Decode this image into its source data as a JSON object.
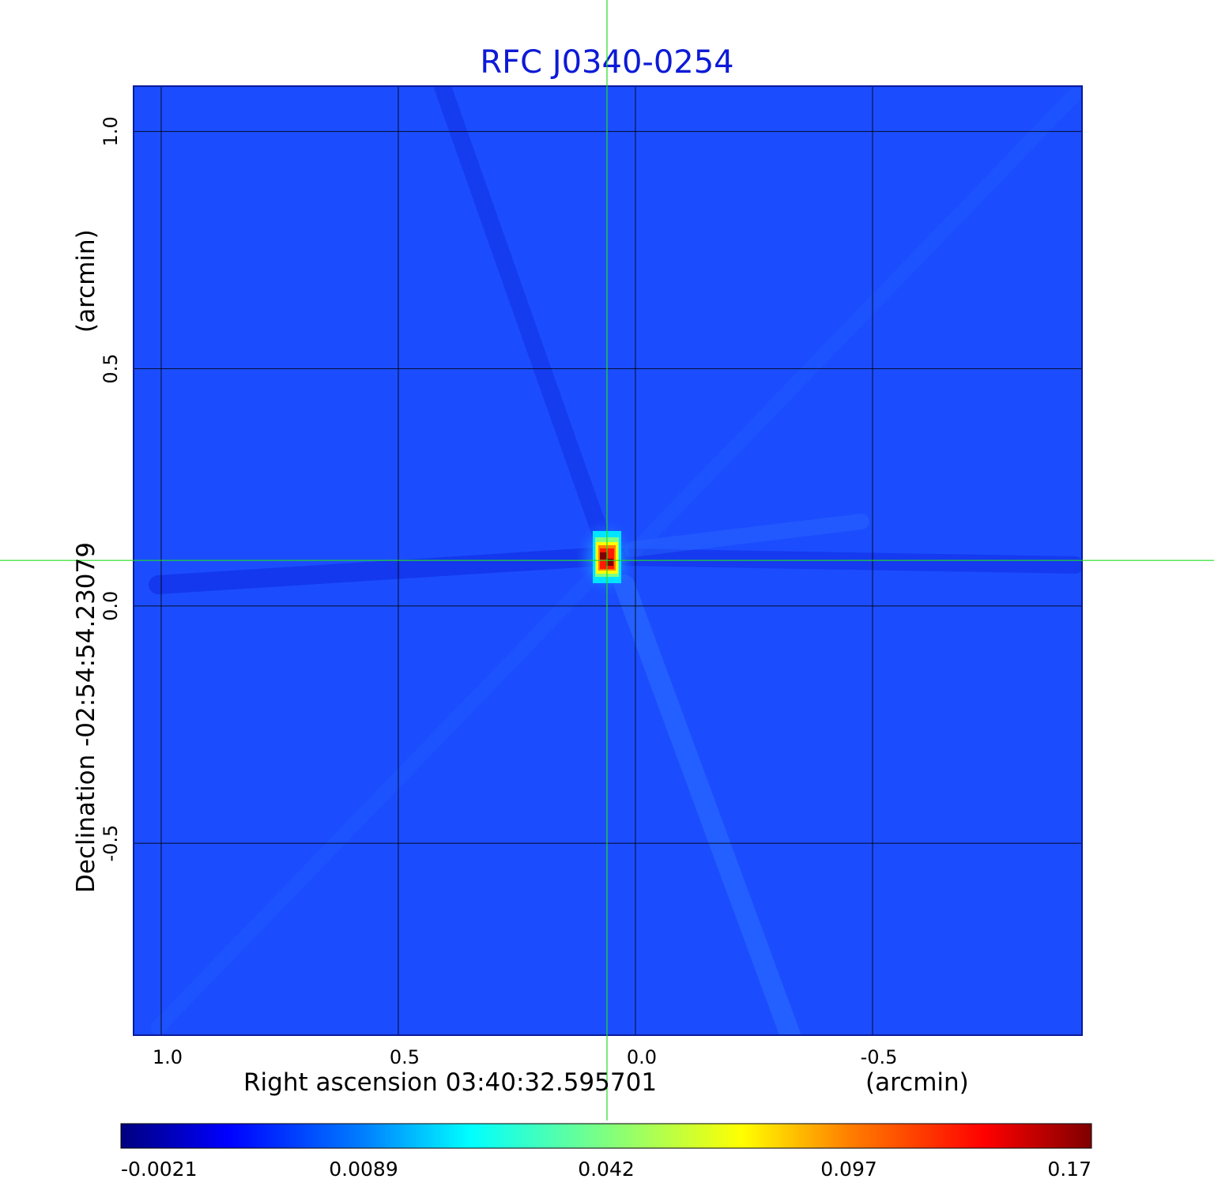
{
  "title": "RFC J0340-0254",
  "x_axis": {
    "label": "Right ascension  03:40:32.595701",
    "unit": "(arcmin)",
    "ticks": [
      "1.0",
      "0.5",
      "0.0",
      "-0.5"
    ],
    "tick_values": [
      1.0,
      0.5,
      0.0,
      -0.5
    ],
    "range": [
      1.0583,
      -0.9417
    ]
  },
  "y_axis": {
    "label": "Declination  -02:54:54.23079",
    "unit": "(arcmin)",
    "ticks": [
      "1.0",
      "0.5",
      "0.0",
      "-0.5"
    ],
    "tick_values": [
      1.0,
      0.5,
      0.0,
      -0.5
    ],
    "range": [
      -0.9045,
      1.0955
    ]
  },
  "grid": true,
  "crosshair": {
    "color": "#22dd22",
    "ra_offset_arcmin": 0.06,
    "dec_offset_arcmin": 0.096
  },
  "image": {
    "colormap": "jet",
    "peak_ra_offset_arcmin": 0.06,
    "peak_dec_offset_arcmin": 0.096,
    "peak_value": 0.17,
    "background_value": 0.004
  },
  "colorbar": {
    "ticks": [
      "-0.0021",
      "0.0089",
      "0.042",
      "0.097",
      "0.17"
    ],
    "colors": [
      "#00007f",
      "#0000ff",
      "#007fff",
      "#00ffff",
      "#7fff7f",
      "#ffff00",
      "#ff7f00",
      "#ff0000",
      "#7f0000"
    ]
  }
}
